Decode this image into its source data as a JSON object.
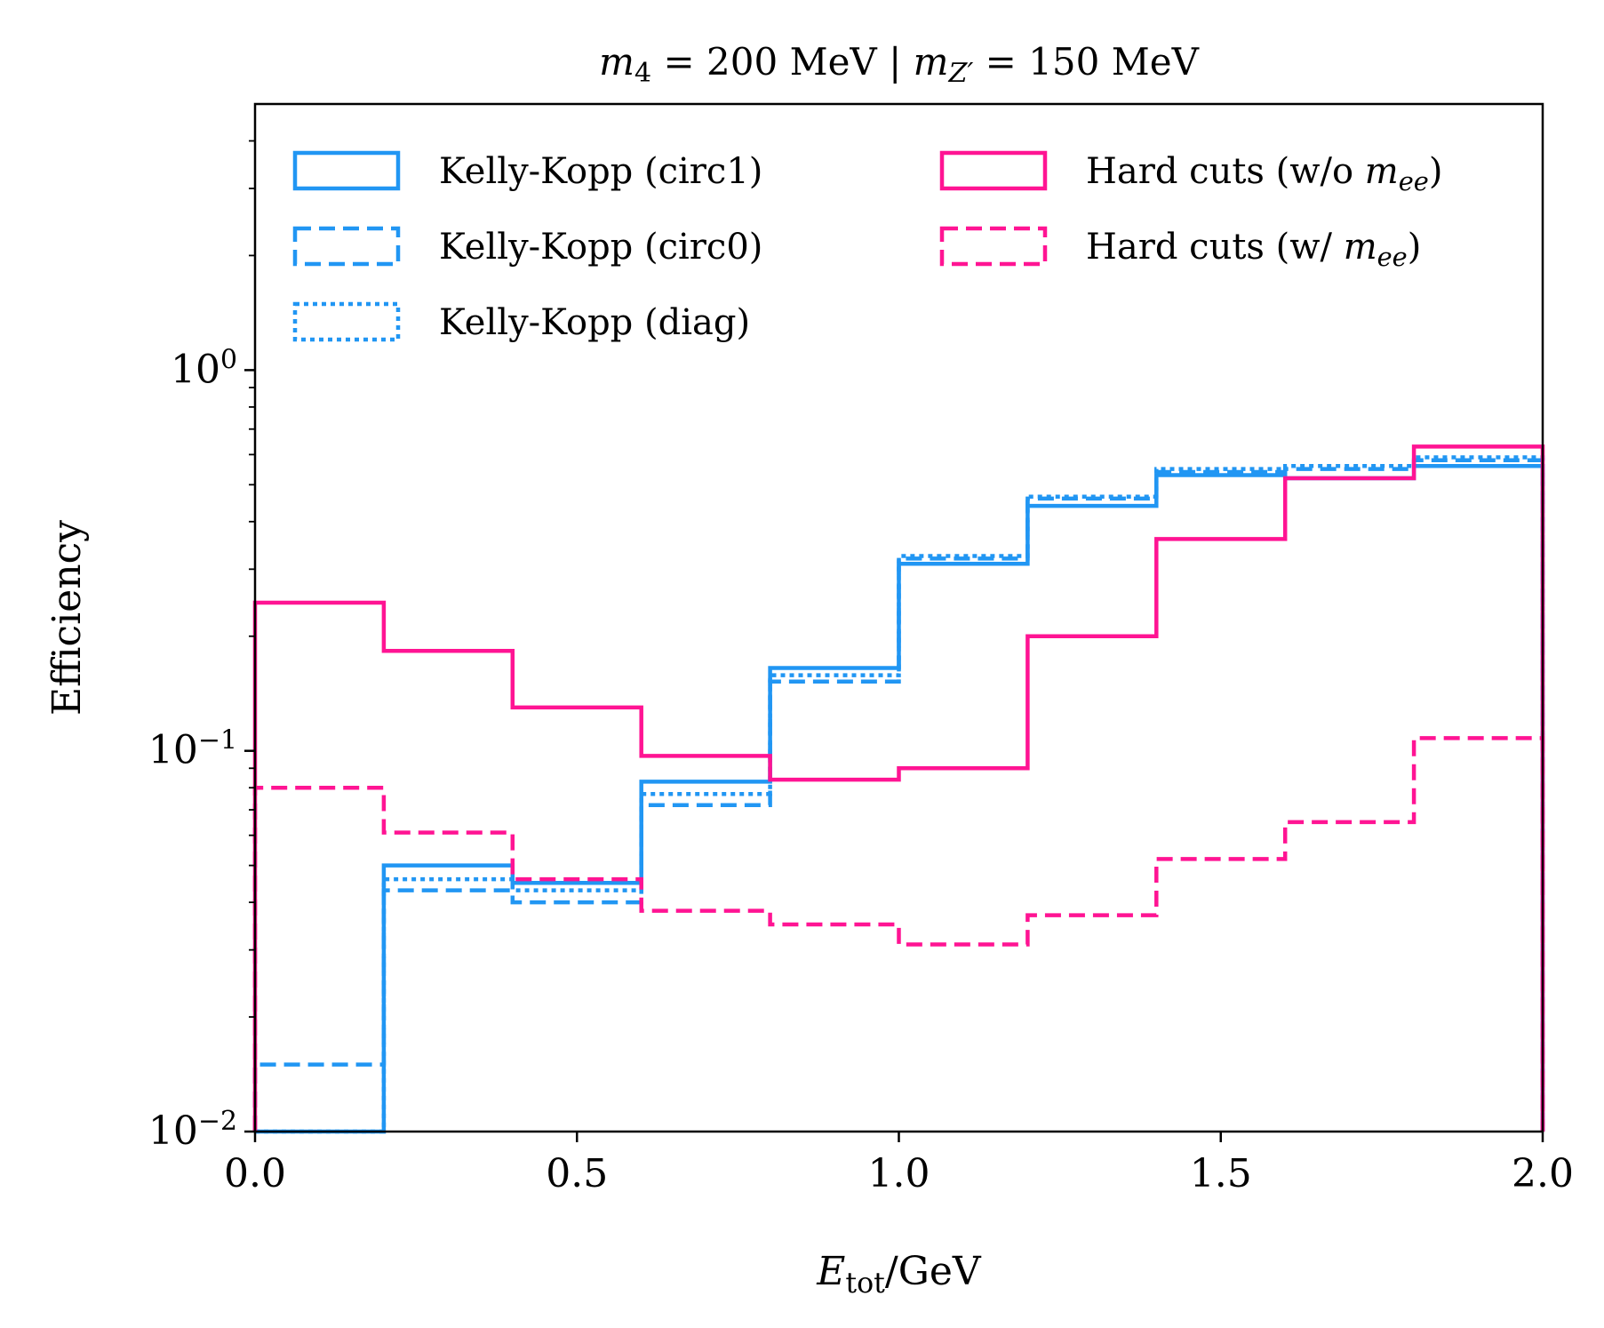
{
  "chart_data": {
    "type": "step",
    "title": {
      "parts": [
        {
          "t": "m",
          "it": true
        },
        {
          "t": "4",
          "sub": true
        },
        {
          "t": " = 200 MeV | "
        },
        {
          "t": "m",
          "it": true
        },
        {
          "t": "Z′",
          "sub": true,
          "it": true
        },
        {
          "t": " = 150 MeV"
        }
      ]
    },
    "xlabel": {
      "parts": [
        {
          "t": "E",
          "it": true
        },
        {
          "t": "tot",
          "sub": true
        },
        {
          "t": "/GeV"
        }
      ]
    },
    "ylabel": "Efficiency",
    "xlim": [
      0.0,
      2.0
    ],
    "ylim": [
      0.01,
      5.0
    ],
    "yscale": "log",
    "x_ticks": [
      {
        "value": 0.0,
        "label": "0.0"
      },
      {
        "value": 0.5,
        "label": "0.5"
      },
      {
        "value": 1.0,
        "label": "1.0"
      },
      {
        "value": 1.5,
        "label": "1.5"
      },
      {
        "value": 2.0,
        "label": "2.0"
      }
    ],
    "y_ticks": [
      {
        "value": 0.01,
        "base": "10",
        "exp": "−2"
      },
      {
        "value": 0.1,
        "base": "10",
        "exp": "−1"
      },
      {
        "value": 1.0,
        "base": "10",
        "exp": "0"
      }
    ],
    "bin_edges": [
      0.0,
      0.2,
      0.4,
      0.6,
      0.8,
      1.0,
      1.2,
      1.4,
      1.6,
      1.8,
      2.0
    ],
    "legend_position": "top",
    "series": [
      {
        "name": "Kelly-Kopp (circ1)",
        "label_parts": [
          {
            "t": "Kelly-Kopp (circ1)"
          }
        ],
        "color": "#2196f3",
        "style": "solid",
        "column": 0,
        "values": [
          0.0,
          0.05,
          0.045,
          0.083,
          0.165,
          0.31,
          0.44,
          0.53,
          0.52,
          0.56
        ]
      },
      {
        "name": "Kelly-Kopp (circ0)",
        "label_parts": [
          {
            "t": "Kelly-Kopp (circ0)"
          }
        ],
        "color": "#2196f3",
        "style": "dashed",
        "column": 0,
        "values": [
          0.015,
          0.043,
          0.04,
          0.072,
          0.152,
          0.32,
          0.46,
          0.54,
          0.55,
          0.58
        ]
      },
      {
        "name": "Kelly-Kopp (diag)",
        "label_parts": [
          {
            "t": "Kelly-Kopp (diag)"
          }
        ],
        "color": "#2196f3",
        "style": "dotted",
        "column": 0,
        "values": [
          0.0,
          0.046,
          0.043,
          0.077,
          0.158,
          0.325,
          0.465,
          0.55,
          0.56,
          0.59
        ]
      },
      {
        "name": "Hard cuts (w/o m_ee)",
        "label_parts": [
          {
            "t": "Hard cuts (w/o "
          },
          {
            "t": "m",
            "it": true
          },
          {
            "t": "ee",
            "sub": true,
            "it": true
          },
          {
            "t": ")"
          }
        ],
        "color": "#ff1493",
        "style": "solid",
        "column": 1,
        "values": [
          0.245,
          0.183,
          0.13,
          0.097,
          0.084,
          0.09,
          0.2,
          0.36,
          0.52,
          0.63
        ]
      },
      {
        "name": "Hard cuts (w/ m_ee)",
        "label_parts": [
          {
            "t": "Hard cuts (w/ "
          },
          {
            "t": "m",
            "it": true
          },
          {
            "t": "ee",
            "sub": true,
            "it": true
          },
          {
            "t": ")"
          }
        ],
        "color": "#ff1493",
        "style": "dashed",
        "column": 1,
        "values": [
          0.08,
          0.061,
          0.046,
          0.038,
          0.035,
          0.031,
          0.037,
          0.052,
          0.065,
          0.108
        ]
      }
    ]
  }
}
